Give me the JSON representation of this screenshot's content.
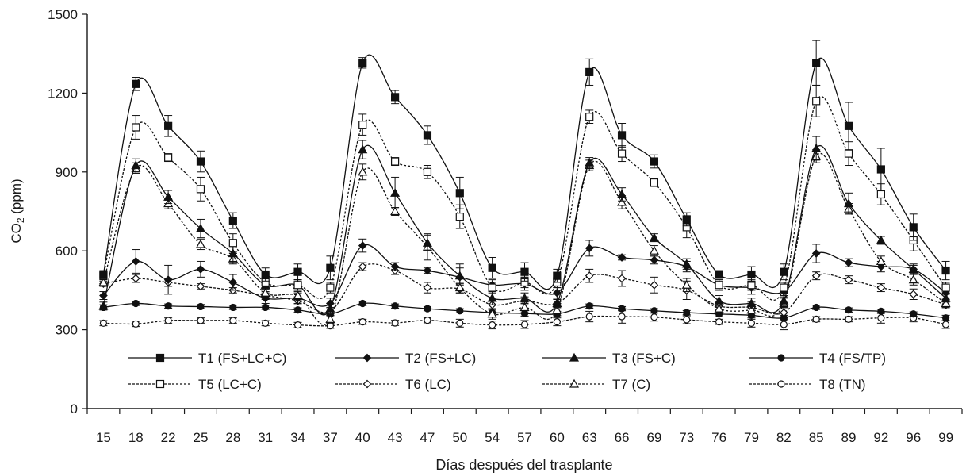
{
  "chart_data": {
    "type": "line",
    "title": "",
    "xlabel": "Días después del trasplante",
    "ylabel_main": "CO",
    "ylabel_sub": "2",
    "ylabel_unit": " (ppm)",
    "ylim": [
      0,
      1500
    ],
    "yticks": [
      0,
      300,
      600,
      900,
      1200,
      1500
    ],
    "grid": false,
    "legend_position": "bottom-inside",
    "categories": [
      "15",
      "18",
      "22",
      "25",
      "28",
      "31",
      "34",
      "37",
      "40",
      "43",
      "47",
      "50",
      "54",
      "57",
      "60",
      "63",
      "66",
      "69",
      "73",
      "76",
      "79",
      "82",
      "85",
      "89",
      "92",
      "96",
      "99"
    ],
    "series": [
      {
        "name": "T1 (FS+LC+C)",
        "marker": "square-filled",
        "dash": "solid",
        "values": [
          510,
          1235,
          1075,
          940,
          715,
          510,
          520,
          535,
          1315,
          1185,
          1040,
          820,
          535,
          520,
          505,
          1280,
          1040,
          940,
          720,
          510,
          510,
          520,
          1315,
          1075,
          910,
          690,
          525
        ],
        "errors": [
          15,
          25,
          40,
          40,
          30,
          25,
          30,
          45,
          20,
          25,
          35,
          60,
          40,
          35,
          25,
          50,
          45,
          25,
          25,
          15,
          30,
          30,
          85,
          90,
          80,
          50,
          35
        ]
      },
      {
        "name": "T2 (FS+LC)",
        "marker": "diamond-filled",
        "dash": "solid",
        "values": [
          430,
          560,
          490,
          530,
          480,
          420,
          420,
          400,
          620,
          540,
          525,
          500,
          470,
          475,
          440,
          610,
          575,
          565,
          540,
          470,
          460,
          445,
          590,
          555,
          540,
          530,
          440
        ],
        "errors": [
          15,
          45,
          55,
          30,
          30,
          20,
          20,
          20,
          25,
          15,
          10,
          50,
          20,
          25,
          20,
          30,
          10,
          15,
          20,
          20,
          25,
          20,
          35,
          15,
          20,
          20,
          20
        ]
      },
      {
        "name": "T3 (FS+C)",
        "marker": "triangle-filled",
        "dash": "solid",
        "values": [
          390,
          925,
          805,
          685,
          590,
          470,
          470,
          380,
          985,
          820,
          630,
          505,
          420,
          420,
          400,
          935,
          815,
          650,
          550,
          410,
          400,
          410,
          990,
          780,
          640,
          530,
          420
        ],
        "errors": [
          15,
          25,
          25,
          35,
          30,
          15,
          20,
          20,
          35,
          60,
          30,
          30,
          25,
          20,
          20,
          20,
          25,
          15,
          20,
          20,
          20,
          20,
          45,
          40,
          15,
          15,
          15
        ]
      },
      {
        "name": "T4 (FS/TP)",
        "marker": "circle-filled",
        "dash": "solid",
        "values": [
          385,
          400,
          390,
          388,
          385,
          385,
          375,
          360,
          400,
          390,
          380,
          372,
          365,
          362,
          360,
          390,
          380,
          372,
          365,
          360,
          355,
          345,
          385,
          375,
          370,
          360,
          345
        ],
        "errors": [
          10,
          8,
          8,
          8,
          8,
          8,
          8,
          10,
          8,
          8,
          8,
          8,
          10,
          10,
          10,
          8,
          8,
          8,
          8,
          10,
          10,
          10,
          8,
          8,
          8,
          8,
          10
        ]
      },
      {
        "name": "T5 (LC+C)",
        "marker": "square-open",
        "dash": "dashed",
        "values": [
          505,
          1070,
          955,
          835,
          630,
          480,
          470,
          460,
          1080,
          940,
          900,
          730,
          460,
          480,
          480,
          1110,
          970,
          860,
          690,
          470,
          470,
          460,
          1170,
          970,
          815,
          640,
          460
        ],
        "errors": [
          15,
          45,
          15,
          45,
          35,
          20,
          20,
          20,
          40,
          15,
          25,
          45,
          20,
          20,
          20,
          25,
          30,
          15,
          40,
          20,
          20,
          20,
          60,
          45,
          40,
          40,
          20
        ]
      },
      {
        "name": "T6 (LC)",
        "marker": "diamond-open",
        "dash": "dashed",
        "values": [
          475,
          495,
          480,
          465,
          450,
          430,
          410,
          370,
          540,
          525,
          460,
          455,
          395,
          410,
          400,
          505,
          495,
          470,
          450,
          390,
          385,
          365,
          505,
          490,
          460,
          435,
          395
        ],
        "errors": [
          10,
          15,
          15,
          10,
          10,
          15,
          15,
          15,
          15,
          15,
          20,
          15,
          15,
          15,
          15,
          25,
          30,
          30,
          35,
          15,
          20,
          20,
          15,
          15,
          15,
          20,
          15
        ]
      },
      {
        "name": "T7 (C)",
        "marker": "triangle-open",
        "dash": "dashed",
        "values": [
          480,
          915,
          780,
          625,
          570,
          440,
          430,
          340,
          900,
          750,
          615,
          460,
          360,
          385,
          375,
          925,
          785,
          600,
          470,
          380,
          375,
          400,
          960,
          760,
          560,
          490,
          400
        ],
        "errors": [
          15,
          20,
          20,
          20,
          20,
          15,
          15,
          15,
          30,
          15,
          50,
          20,
          20,
          20,
          20,
          20,
          25,
          20,
          25,
          20,
          20,
          20,
          25,
          20,
          20,
          20,
          15
        ]
      },
      {
        "name": "T8 (TN)",
        "marker": "circle-open",
        "dash": "dashed",
        "values": [
          325,
          322,
          335,
          335,
          335,
          325,
          318,
          315,
          330,
          326,
          336,
          325,
          318,
          320,
          330,
          350,
          350,
          348,
          338,
          330,
          325,
          320,
          340,
          340,
          345,
          345,
          320
        ],
        "errors": [
          10,
          10,
          10,
          10,
          10,
          10,
          10,
          10,
          10,
          10,
          10,
          15,
          15,
          15,
          15,
          20,
          25,
          15,
          15,
          10,
          15,
          20,
          10,
          10,
          20,
          15,
          15
        ]
      }
    ]
  }
}
